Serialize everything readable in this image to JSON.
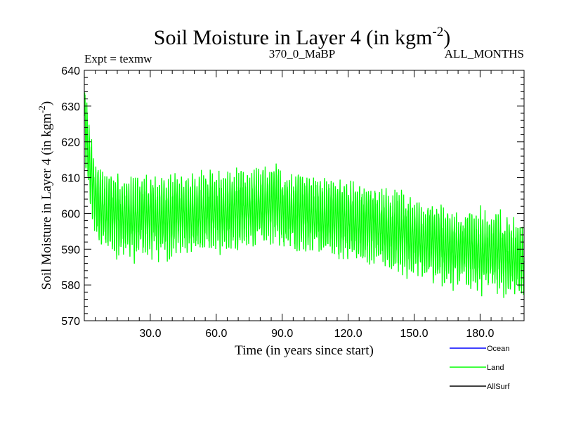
{
  "chart_data": {
    "type": "line",
    "title": "Soil Moisture in Layer 4 (in kgm",
    "title_superscript": "-2",
    "title_suffix": ")",
    "subtitle_left": "Expt = texmw",
    "subtitle_center": "370_0_MaBP",
    "subtitle_right": "ALL_MONTHS",
    "xlabel": "Time (in years since start)",
    "ylabel": "Soil Moisture in Layer 4 (in kgm",
    "ylabel_superscript": "-2",
    "ylabel_suffix": ")",
    "xlim": [
      0,
      200
    ],
    "ylim": [
      570,
      640
    ],
    "x_ticks": [
      30,
      60,
      90,
      120,
      150,
      180
    ],
    "x_tick_labels": [
      "30.0",
      "60.0",
      "90.0",
      "120.0",
      "150.0",
      "180.0"
    ],
    "y_ticks": [
      570,
      580,
      590,
      600,
      610,
      620,
      630,
      640
    ],
    "y_tick_labels": [
      "570",
      "580",
      "590",
      "600",
      "610",
      "620",
      "630",
      "640"
    ],
    "legend_position": "bottom-right",
    "series": [
      {
        "name": "Ocean",
        "color": "#0000ff",
        "values": []
      },
      {
        "name": "Land",
        "color": "#00ff00",
        "seasonal_amplitude": 9,
        "trend": {
          "x": [
            0,
            2,
            5,
            10,
            20,
            40,
            60,
            75,
            85,
            95,
            110,
            130,
            150,
            170,
            185,
            200
          ],
          "y": [
            626,
            616,
            604,
            600,
            599,
            599,
            600,
            601,
            603,
            600,
            599,
            597,
            593,
            590,
            589,
            587
          ]
        }
      },
      {
        "name": "AllSurf",
        "color": "#000000",
        "values": []
      }
    ]
  }
}
